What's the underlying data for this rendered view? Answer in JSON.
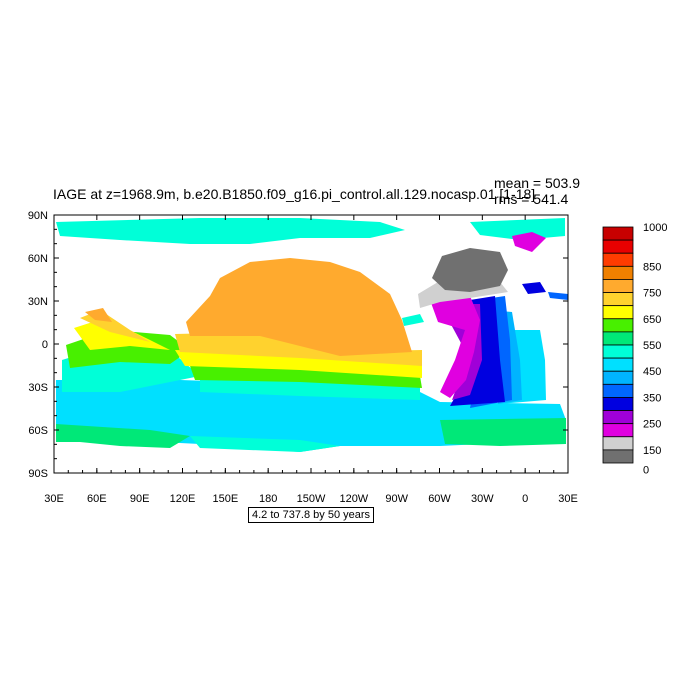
{
  "plot": {
    "title": "IAGE at z=1968.9m, b.e20.B1850.f09_g16.pi_control.all.129.nocasp.01 [1-18]",
    "mean_label": "mean = 503.9",
    "rms_label": "rms = 541.4",
    "range_label": "4.2 to 737.8 by 50 years"
  },
  "axes": {
    "y_ticks": [
      "90N",
      "60N",
      "30N",
      "0",
      "30S",
      "60S",
      "90S"
    ],
    "x_ticks": [
      "30E",
      "60E",
      "90E",
      "120E",
      "150E",
      "180",
      "150W",
      "120W",
      "90W",
      "60W",
      "30W",
      "0",
      "30E"
    ]
  },
  "colorbar": {
    "labels": [
      "1000",
      "850",
      "750",
      "650",
      "550",
      "450",
      "350",
      "250",
      "150",
      "0"
    ],
    "colors": [
      "#c80000",
      "#e80000",
      "#ff3c00",
      "#f08000",
      "#ffaa2e",
      "#ffd22e",
      "#ffff00",
      "#48f000",
      "#00e878",
      "#00ffd8",
      "#00e0ff",
      "#00b4ff",
      "#0066ff",
      "#0000e0",
      "#a000d8",
      "#e000e0",
      "#d0d0d0",
      "#707070"
    ]
  }
}
